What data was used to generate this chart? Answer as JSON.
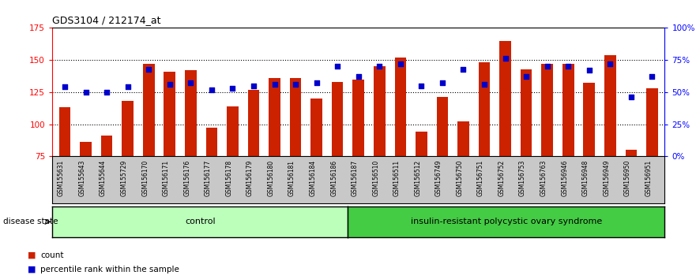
{
  "title": "GDS3104 / 212174_at",
  "samples": [
    "GSM155631",
    "GSM155643",
    "GSM155644",
    "GSM155729",
    "GSM156170",
    "GSM156171",
    "GSM156176",
    "GSM156177",
    "GSM156178",
    "GSM156179",
    "GSM156180",
    "GSM156181",
    "GSM156184",
    "GSM156186",
    "GSM156187",
    "GSM156510",
    "GSM156511",
    "GSM156512",
    "GSM156749",
    "GSM156750",
    "GSM156751",
    "GSM156752",
    "GSM156753",
    "GSM156763",
    "GSM156946",
    "GSM156948",
    "GSM156949",
    "GSM156950",
    "GSM156951"
  ],
  "bar_values": [
    113,
    86,
    91,
    118,
    147,
    141,
    142,
    97,
    114,
    127,
    136,
    136,
    120,
    133,
    135,
    145,
    152,
    94,
    121,
    102,
    148,
    165,
    143,
    147,
    147,
    132,
    154,
    80,
    128
  ],
  "percentile_values": [
    54,
    50,
    50,
    54,
    68,
    56,
    57,
    52,
    53,
    55,
    56,
    56,
    57,
    70,
    62,
    70,
    72,
    55,
    57,
    68,
    56,
    76,
    62,
    70,
    70,
    67,
    72,
    46,
    62
  ],
  "group_control_count": 14,
  "group_disease_count": 15,
  "bar_color": "#cc2200",
  "square_color": "#0000cc",
  "bar_bottom": 75,
  "ylim_left": [
    75,
    175
  ],
  "ylim_right": [
    0,
    100
  ],
  "yticks_left": [
    75,
    100,
    125,
    150,
    175
  ],
  "ytick_labels_left": [
    "75",
    "100",
    "125",
    "150",
    "175"
  ],
  "yticks_right": [
    0,
    25,
    50,
    75,
    100
  ],
  "ytick_labels_right": [
    "0%",
    "25%",
    "50%",
    "75%",
    "100%"
  ],
  "grid_values": [
    100,
    125,
    150
  ],
  "control_label": "control",
  "disease_label": "insulin-resistant polycystic ovary syndrome",
  "disease_state_label": "disease state",
  "legend_bar_label": "count",
  "legend_square_label": "percentile rank within the sample",
  "control_bg": "#bbffbb",
  "disease_bg": "#44cc44",
  "tick_area_bg": "#c8c8c8"
}
